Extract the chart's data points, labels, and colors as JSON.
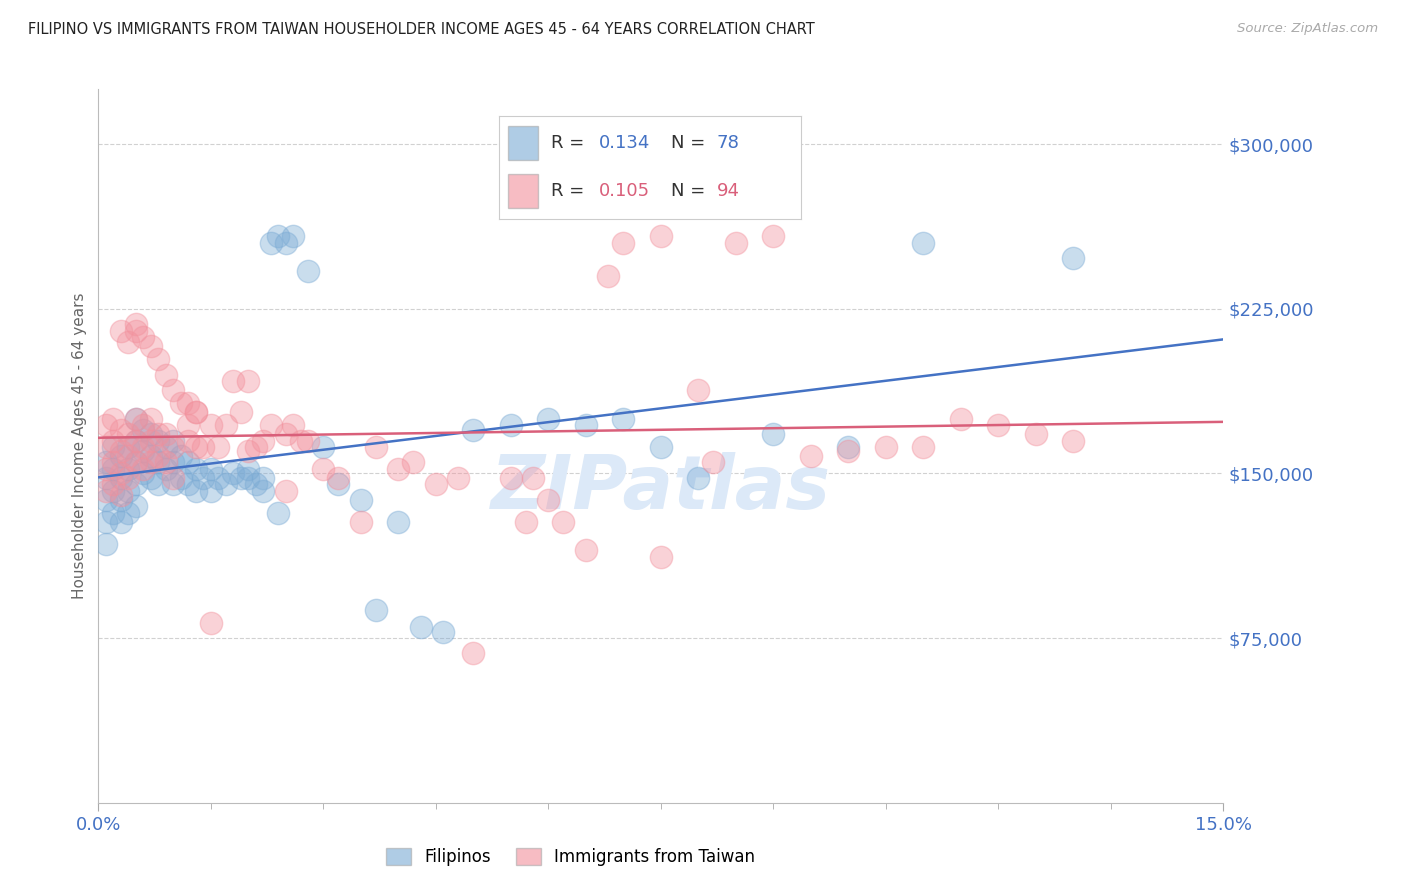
{
  "title": "FILIPINO VS IMMIGRANTS FROM TAIWAN HOUSEHOLDER INCOME AGES 45 - 64 YEARS CORRELATION CHART",
  "source": "Source: ZipAtlas.com",
  "ylabel": "Householder Income Ages 45 - 64 years",
  "xlim": [
    0,
    0.15
  ],
  "ylim": [
    0,
    325000
  ],
  "yticks": [
    75000,
    150000,
    225000,
    300000
  ],
  "bg_color": "#ffffff",
  "grid_color": "#cccccc",
  "title_color": "#222222",
  "ylabel_color": "#666666",
  "tick_color": "#4472c4",
  "watermark": "ZIPatlas",
  "watermark_color": "#dce9f8",
  "series1_color": "#7aaad4",
  "series2_color": "#f2909c",
  "trend1_color": "#4472c4",
  "trend2_color": "#d95f7a",
  "series1_label": "Filipinos",
  "series2_label": "Immigrants from Taiwan",
  "R1": 0.134,
  "N1": 78,
  "R2": 0.105,
  "N2": 94,
  "fil_x": [
    0.001,
    0.001,
    0.001,
    0.001,
    0.001,
    0.002,
    0.002,
    0.002,
    0.002,
    0.003,
    0.003,
    0.003,
    0.003,
    0.004,
    0.004,
    0.004,
    0.004,
    0.005,
    0.005,
    0.005,
    0.005,
    0.005,
    0.006,
    0.006,
    0.006,
    0.007,
    0.007,
    0.007,
    0.008,
    0.008,
    0.008,
    0.009,
    0.009,
    0.01,
    0.01,
    0.01,
    0.011,
    0.011,
    0.012,
    0.012,
    0.013,
    0.013,
    0.014,
    0.015,
    0.015,
    0.016,
    0.017,
    0.018,
    0.019,
    0.02,
    0.021,
    0.022,
    0.023,
    0.024,
    0.025,
    0.026,
    0.028,
    0.03,
    0.032,
    0.035,
    0.037,
    0.04,
    0.043,
    0.046,
    0.05,
    0.055,
    0.06,
    0.065,
    0.07,
    0.075,
    0.08,
    0.09,
    0.1,
    0.11,
    0.13,
    0.02,
    0.022,
    0.024
  ],
  "fil_y": [
    155000,
    148000,
    138000,
    128000,
    118000,
    162000,
    152000,
    142000,
    132000,
    158000,
    148000,
    138000,
    128000,
    162000,
    152000,
    142000,
    132000,
    175000,
    165000,
    155000,
    145000,
    135000,
    170000,
    160000,
    150000,
    168000,
    158000,
    148000,
    165000,
    155000,
    145000,
    162000,
    152000,
    165000,
    155000,
    145000,
    158000,
    148000,
    155000,
    145000,
    152000,
    142000,
    148000,
    152000,
    142000,
    148000,
    145000,
    150000,
    148000,
    152000,
    145000,
    148000,
    255000,
    258000,
    255000,
    258000,
    242000,
    162000,
    145000,
    138000,
    88000,
    128000,
    80000,
    78000,
    170000,
    172000,
    175000,
    172000,
    175000,
    162000,
    148000,
    168000,
    162000,
    255000,
    248000,
    148000,
    142000,
    132000
  ],
  "tai_x": [
    0.001,
    0.001,
    0.001,
    0.001,
    0.002,
    0.002,
    0.002,
    0.002,
    0.003,
    0.003,
    0.003,
    0.003,
    0.004,
    0.004,
    0.004,
    0.005,
    0.005,
    0.005,
    0.006,
    0.006,
    0.006,
    0.007,
    0.007,
    0.007,
    0.008,
    0.008,
    0.009,
    0.009,
    0.01,
    0.01,
    0.011,
    0.012,
    0.012,
    0.013,
    0.013,
    0.014,
    0.015,
    0.016,
    0.017,
    0.018,
    0.019,
    0.02,
    0.021,
    0.022,
    0.023,
    0.025,
    0.026,
    0.027,
    0.028,
    0.03,
    0.032,
    0.035,
    0.037,
    0.04,
    0.042,
    0.045,
    0.048,
    0.05,
    0.055,
    0.058,
    0.06,
    0.062,
    0.065,
    0.07,
    0.075,
    0.08,
    0.082,
    0.085,
    0.09,
    0.095,
    0.1,
    0.105,
    0.11,
    0.115,
    0.12,
    0.125,
    0.13,
    0.003,
    0.004,
    0.005,
    0.005,
    0.006,
    0.007,
    0.008,
    0.009,
    0.01,
    0.012,
    0.013,
    0.015,
    0.02,
    0.025,
    0.057,
    0.068,
    0.075
  ],
  "tai_y": [
    172000,
    162000,
    152000,
    142000,
    175000,
    165000,
    155000,
    145000,
    170000,
    160000,
    150000,
    140000,
    168000,
    158000,
    148000,
    175000,
    165000,
    155000,
    172000,
    162000,
    152000,
    175000,
    165000,
    155000,
    168000,
    158000,
    168000,
    155000,
    162000,
    148000,
    182000,
    165000,
    172000,
    162000,
    178000,
    162000,
    82000,
    162000,
    172000,
    192000,
    178000,
    160000,
    162000,
    165000,
    172000,
    168000,
    172000,
    165000,
    165000,
    152000,
    148000,
    128000,
    162000,
    152000,
    155000,
    145000,
    148000,
    68000,
    148000,
    148000,
    138000,
    128000,
    115000,
    255000,
    258000,
    188000,
    155000,
    255000,
    258000,
    158000,
    160000,
    162000,
    162000,
    175000,
    172000,
    168000,
    165000,
    215000,
    210000,
    215000,
    218000,
    212000,
    208000,
    202000,
    195000,
    188000,
    182000,
    178000,
    172000,
    192000,
    142000,
    128000,
    240000,
    112000
  ]
}
